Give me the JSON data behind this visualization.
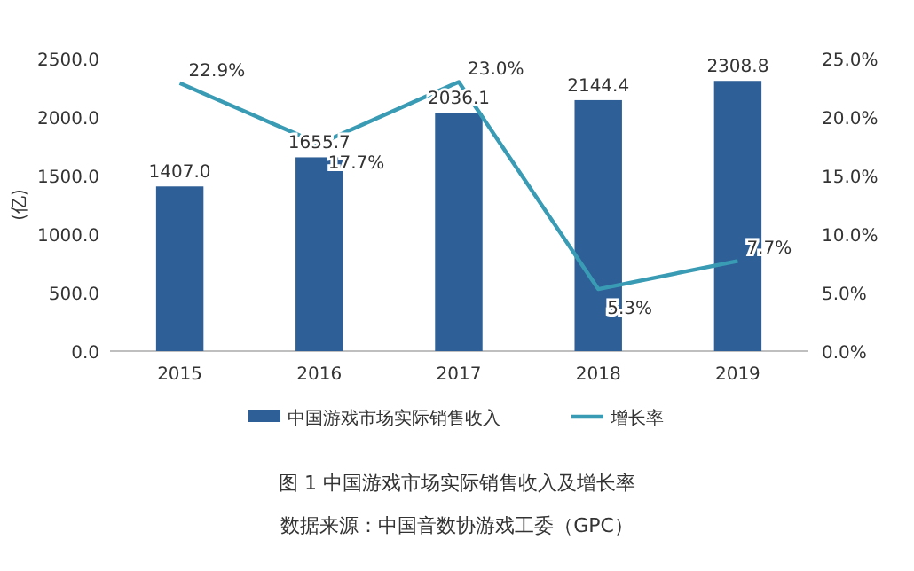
{
  "chart_data": {
    "type": "bar",
    "title": "图 1 中国游戏市场实际销售收入及增长率",
    "ylabel": "(亿)",
    "categories": [
      "2015",
      "2016",
      "2017",
      "2018",
      "2019"
    ],
    "series": [
      {
        "name": "中国游戏市场实际销售收入",
        "color": "#2e5f96",
        "values": [
          1407.0,
          1655.7,
          2036.1,
          2144.4,
          2308.8
        ],
        "value_labels": [
          "1407.0",
          "1655.7",
          "2036.1",
          "2144.4",
          "2308.8"
        ]
      },
      {
        "name": "增长率",
        "type": "line",
        "axis": "y2",
        "color": "#3a9bb5",
        "values": [
          22.9,
          17.7,
          23.0,
          5.3,
          7.7
        ],
        "value_labels": [
          "22.9%",
          "17.7%",
          "23.0%",
          "5.3%",
          "7.7%"
        ]
      }
    ],
    "ylim": [
      0,
      2500
    ],
    "yticks": [
      {
        "value": 0,
        "label": "0.0"
      },
      {
        "value": 500,
        "label": "500.0"
      },
      {
        "value": 1000,
        "label": "1000.0"
      },
      {
        "value": 1500,
        "label": "1500.0"
      },
      {
        "value": 2000,
        "label": "2000.0"
      },
      {
        "value": 2500,
        "label": "2500.0"
      }
    ],
    "y2lim": [
      0,
      25
    ],
    "y2ticks": [
      {
        "value": 0,
        "label": "0.0%"
      },
      {
        "value": 5,
        "label": "5.0%"
      },
      {
        "value": 10,
        "label": "10.0%"
      },
      {
        "value": 15,
        "label": "15.0%"
      },
      {
        "value": 20,
        "label": "20.0%"
      },
      {
        "value": 25,
        "label": "25.0%"
      }
    ],
    "legend": "bottom",
    "annotations": [
      "数据来源：中国音数协游戏工委（GPC）"
    ]
  }
}
